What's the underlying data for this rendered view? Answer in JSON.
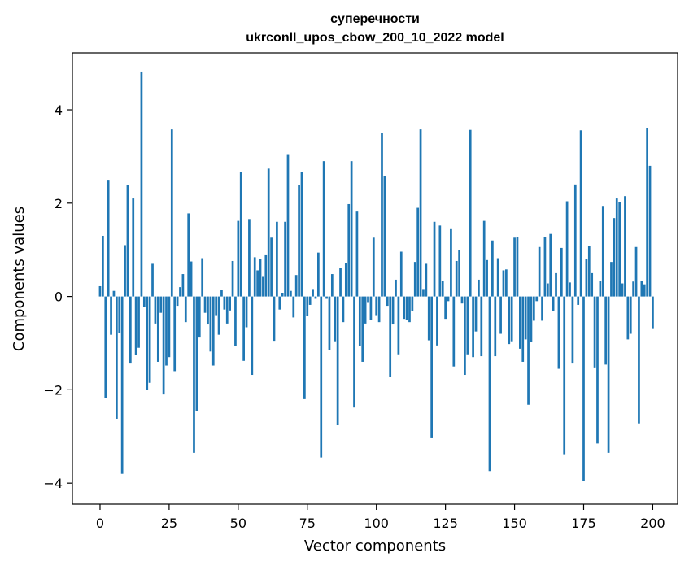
{
  "chart_data": {
    "type": "bar",
    "title_line1": "суперечности",
    "title_line2": "ukrconll_upos_cbow_200_10_2022 model",
    "xlabel": "Vector components",
    "ylabel": "Components values",
    "xlim": [
      -10,
      209
    ],
    "ylim": [
      -4.45,
      5.22
    ],
    "xticks": [
      0,
      25,
      50,
      75,
      100,
      125,
      150,
      175,
      200
    ],
    "xtick_labels": [
      "0",
      "25",
      "50",
      "75",
      "100",
      "125",
      "150",
      "175",
      "200"
    ],
    "yticks": [
      -4,
      -2,
      0,
      2,
      4
    ],
    "ytick_labels": [
      "−4",
      "−2",
      "0",
      "2",
      "4"
    ],
    "bar_color": "#1f77b4",
    "grid": false,
    "values": [
      0.22,
      1.3,
      -2.18,
      2.5,
      -0.82,
      0.12,
      -2.62,
      -0.78,
      -3.8,
      1.1,
      2.38,
      -1.42,
      2.1,
      -1.25,
      -1.1,
      4.82,
      -0.22,
      -2.0,
      -1.85,
      0.7,
      -0.58,
      -1.4,
      -0.35,
      -2.1,
      -1.48,
      -1.3,
      3.58,
      -1.6,
      -0.2,
      0.2,
      0.48,
      -0.55,
      1.78,
      0.75,
      -3.35,
      -2.45,
      -0.88,
      0.82,
      -0.35,
      -0.6,
      -1.18,
      -1.48,
      -0.4,
      -0.82,
      0.14,
      -0.28,
      -0.58,
      -0.3,
      0.76,
      -1.06,
      1.62,
      2.66,
      -1.38,
      -0.66,
      1.66,
      -1.68,
      0.84,
      0.56,
      0.8,
      0.42,
      0.9,
      2.74,
      1.26,
      -0.95,
      1.6,
      -0.28,
      0.08,
      1.6,
      3.05,
      0.12,
      -0.45,
      0.46,
      2.38,
      2.66,
      -2.2,
      -0.42,
      -0.18,
      0.16,
      -0.05,
      0.94,
      -3.45,
      2.9,
      -0.05,
      -1.15,
      0.48,
      -0.96,
      -2.76,
      0.62,
      -0.55,
      0.72,
      1.98,
      2.9,
      -2.38,
      1.82,
      -1.06,
      -1.4,
      -0.58,
      -0.12,
      -0.5,
      1.26,
      -0.4,
      -0.55,
      3.5,
      2.58,
      -0.2,
      -1.72,
      -0.6,
      0.36,
      -1.24,
      0.96,
      -0.48,
      -0.5,
      -0.55,
      -0.32,
      0.74,
      1.9,
      3.58,
      0.16,
      0.7,
      -0.94,
      -3.02,
      1.6,
      -1.05,
      1.52,
      0.34,
      -0.48,
      -0.1,
      1.46,
      -1.5,
      0.76,
      1.0,
      -0.15,
      -1.68,
      -1.24,
      3.57,
      -1.3,
      -0.75,
      0.36,
      -1.28,
      1.62,
      0.78,
      -3.74,
      1.2,
      -1.28,
      0.82,
      -0.8,
      0.56,
      0.58,
      -1.02,
      -0.96,
      1.26,
      1.28,
      -1.12,
      -1.4,
      -0.92,
      -2.32,
      -0.98,
      -0.52,
      -0.1,
      1.06,
      -0.52,
      1.28,
      0.28,
      1.34,
      -0.32,
      0.5,
      -1.55,
      1.04,
      -3.38,
      2.04,
      0.3,
      -1.42,
      2.4,
      -0.18,
      3.56,
      -3.96,
      0.8,
      1.08,
      0.5,
      -1.52,
      -3.15,
      0.34,
      1.94,
      -1.46,
      -3.35,
      0.74,
      1.68,
      2.1,
      2.02,
      0.28,
      2.15,
      -0.92,
      -0.8,
      0.32,
      1.06,
      -2.72,
      0.34,
      0.26,
      3.6,
      2.8,
      -0.68
    ]
  }
}
